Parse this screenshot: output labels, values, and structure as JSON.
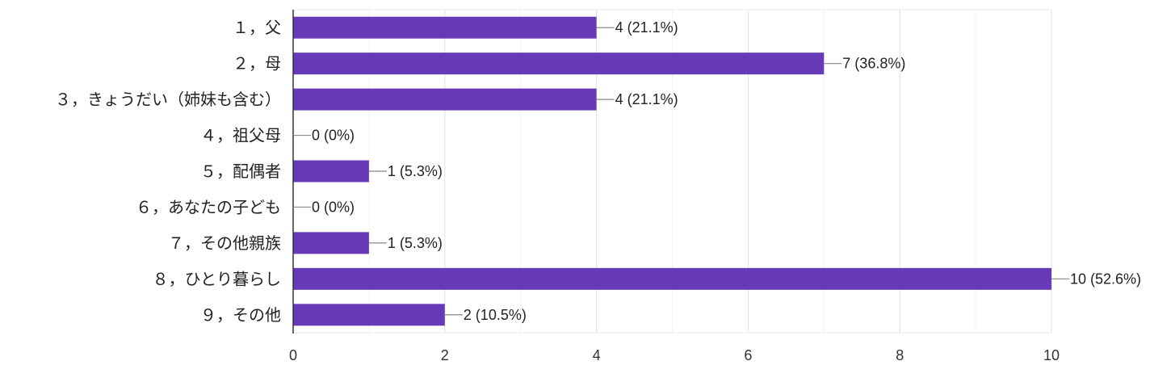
{
  "chart_data": {
    "type": "bar",
    "orientation": "horizontal",
    "categories": [
      "１，父",
      "２，母",
      "３，きょうだい（姉妹も含む）",
      "４，祖父母",
      "５，配偶者",
      "６，あなたの子ども",
      "７，その他親族",
      "８，ひとり暮らし",
      "９，その他"
    ],
    "values": [
      4,
      7,
      4,
      0,
      1,
      0,
      1,
      10,
      2
    ],
    "data_labels": [
      "4 (21.1%)",
      "7 (36.8%)",
      "4 (21.1%)",
      "0 (0%)",
      "1 (5.3%)",
      "0 (0%)",
      "1 (5.3%)",
      "10 (52.6%)",
      "2 (10.5%)"
    ],
    "x_ticks": [
      "0",
      "2",
      "4",
      "6",
      "8",
      "10"
    ],
    "xlim": [
      0,
      10
    ],
    "grid": true,
    "legend": "none",
    "colors": {
      "bar": "#673ab7",
      "grid": "#e8e8e8",
      "axis": "#333333",
      "leader": "#888888"
    }
  }
}
